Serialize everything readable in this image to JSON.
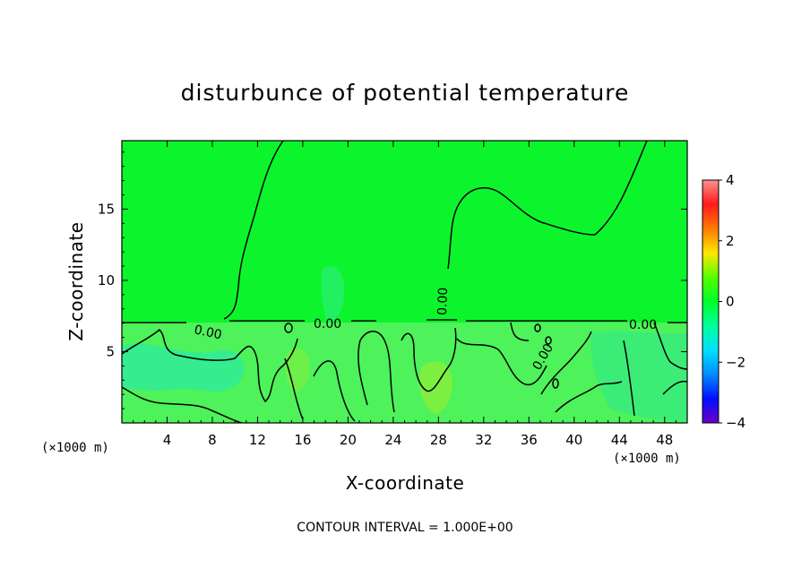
{
  "chart_data": {
    "type": "heatmap",
    "title": "disturbunce of potential temperature",
    "xlabel": "X-coordinate",
    "ylabel": "Z-coordinate",
    "x_unit": "(×1000 m)",
    "x_ticks": [
      4,
      8,
      12,
      16,
      20,
      24,
      28,
      32,
      36,
      40,
      44,
      48
    ],
    "y_ticks": [
      5,
      10,
      15
    ],
    "xlim": [
      0,
      50
    ],
    "ylim": [
      0,
      19.8
    ],
    "colorbar": {
      "ticks": [
        4,
        2,
        0,
        -2,
        -4
      ],
      "range": [
        -4,
        4
      ],
      "colors": [
        "#ff9090",
        "#ff1a1a",
        "#ff7a00",
        "#ffe600",
        "#55ff00",
        "#00ff2a",
        "#00ff9a",
        "#00e0ff",
        "#008cff",
        "#0010ff",
        "#6a00c8"
      ]
    },
    "contour_labels": [
      "0.00",
      "0.00",
      "0.00",
      "0.00",
      "0.00",
      "0.00"
    ],
    "field_colors": {
      "upper": "#0cf52c",
      "lower": "#4ef25a",
      "cool": "#2ee9a0",
      "warm": "#86ee3c"
    },
    "footer": "CONTOUR INTERVAL = 1.000E+00"
  }
}
